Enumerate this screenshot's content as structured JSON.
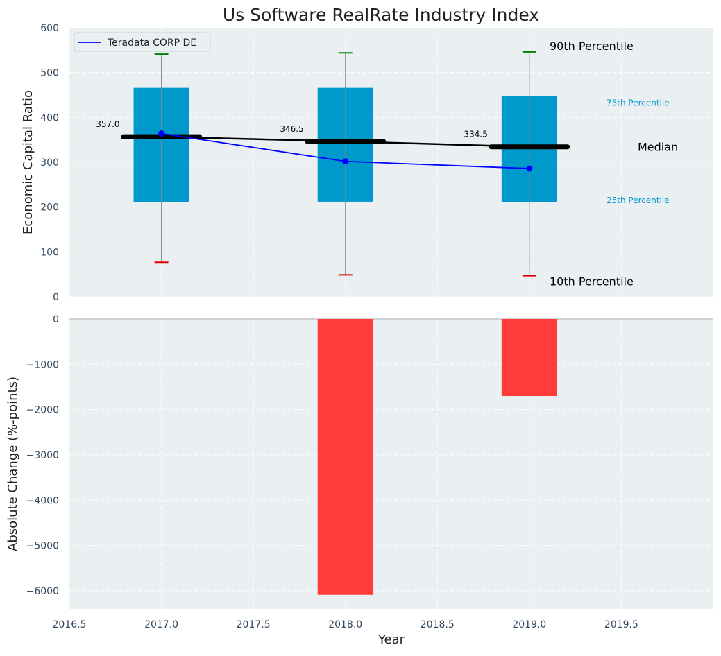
{
  "title": "Us Software RealRate Industry Index",
  "colors": {
    "background": "#ffffff",
    "axes_bg": "#eaeff1",
    "grid": "#ffffff",
    "box": "#0099cc",
    "median": "#000000",
    "company_line": "#0000ff",
    "p90_cap": "#008000",
    "p10_cap": "#dd0000",
    "bar_negative": "#ff3b3b",
    "tick_text": "#34495e",
    "percentile_label": "#0099cc"
  },
  "chart_data": [
    {
      "type": "box",
      "ylabel": "Economic Capital Ratio",
      "ylim": [
        0,
        600
      ],
      "xlim": [
        2016.5,
        2020.0
      ],
      "x_ticks": [
        "2016.5",
        "2017.0",
        "2017.5",
        "2018.0",
        "2018.5",
        "2019.0",
        "2019.5"
      ],
      "y_ticks": [
        "0",
        "100",
        "200",
        "300",
        "400",
        "500",
        "600"
      ],
      "grid": true,
      "legend": {
        "position": "top-left",
        "entries": [
          "Teradata CORP DE"
        ]
      },
      "categories": [
        2017,
        2018,
        2019
      ],
      "boxes": [
        {
          "x": 2017,
          "p10": 77,
          "p25": 211,
          "median": 357.0,
          "p75": 466,
          "p90": 541
        },
        {
          "x": 2018,
          "p10": 49,
          "p25": 212,
          "median": 346.5,
          "p75": 466,
          "p90": 544
        },
        {
          "x": 2019,
          "p10": 47,
          "p25": 211,
          "median": 334.5,
          "p75": 448,
          "p90": 546
        }
      ],
      "median_labels": [
        "357.0",
        "346.5",
        "334.5"
      ],
      "series": [
        {
          "name": "Teradata CORP DE",
          "x": [
            2017,
            2018,
            2019
          ],
          "values": [
            364,
            302,
            286
          ]
        }
      ],
      "annotations": {
        "p90": "90th Percentile",
        "p75": "75th Percentile",
        "median": "Median",
        "p25": "25th Percentile",
        "p10": "10th Percentile"
      }
    },
    {
      "type": "bar",
      "ylabel": "Absolute Change (%-points)",
      "xlabel": "Year",
      "ylim": [
        -6400,
        0
      ],
      "xlim": [
        2016.5,
        2020.0
      ],
      "y_ticks": [
        "0",
        "−1000",
        "−2000",
        "−3000",
        "−4000",
        "−5000",
        "−6000"
      ],
      "x_ticks": [
        "2016.5",
        "2017.0",
        "2017.5",
        "2018.0",
        "2018.5",
        "2019.0",
        "2019.5"
      ],
      "grid": true,
      "categories": [
        2017,
        2018,
        2019
      ],
      "values": [
        0,
        -6090,
        -1700
      ]
    }
  ]
}
